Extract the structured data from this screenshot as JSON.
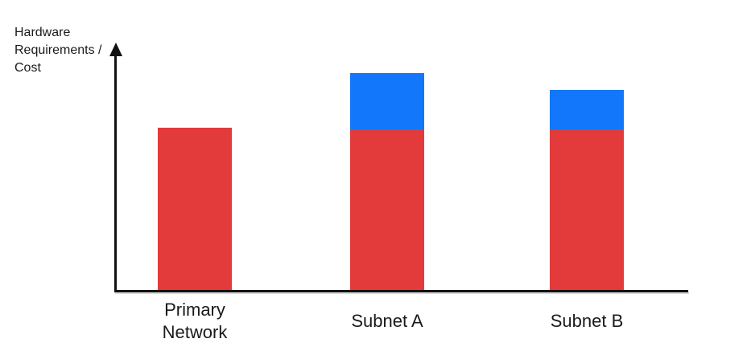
{
  "page": {
    "background": "#ffffff",
    "text_color": "#1a1a1a",
    "axis_color": "#111111"
  },
  "chart_data": {
    "type": "bar",
    "stacked": true,
    "title": "",
    "xlabel": "",
    "ylabel": "Hardware Requirements / Cost",
    "ylabel_lines": [
      "Hardware",
      "Requirements /",
      "Cost"
    ],
    "categories": [
      "Primary Network",
      "Subnet A",
      "Subnet B"
    ],
    "series": [
      {
        "name": "red-base-cost",
        "color": "#E33B3B",
        "values": [
          66,
          65.5,
          65.5
        ]
      },
      {
        "name": "blue-added-cost",
        "color": "#1277FB",
        "values": [
          0,
          23,
          16
        ]
      }
    ],
    "ylim": [
      0,
      100
    ],
    "grid": false,
    "legend": "none",
    "y_axis_arrow": true,
    "tick_labels": "none"
  }
}
